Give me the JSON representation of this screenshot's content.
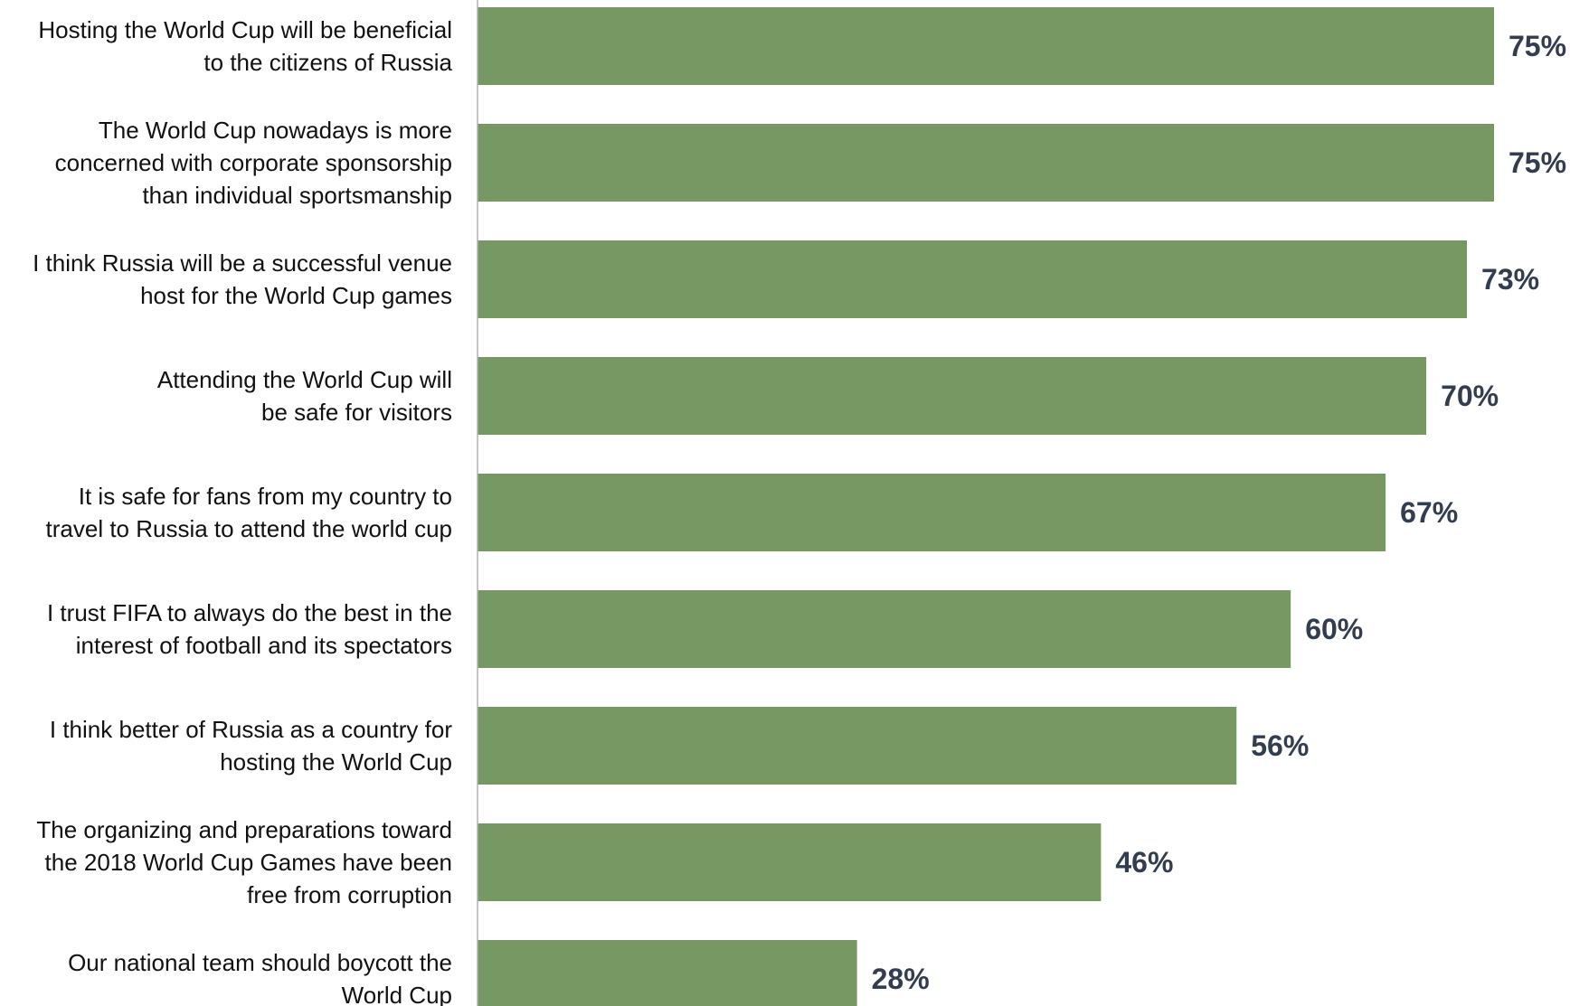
{
  "chart_data": {
    "type": "bar",
    "orientation": "horizontal",
    "categories": [
      "Hosting the World Cup will be beneficial to the citizens of Russia",
      "The World Cup nowadays is more concerned with corporate sponsorship than individual sportsmanship",
      "I think Russia will be a successful venue host for the World Cup games",
      "Attending the World Cup will be safe for visitors",
      "It is safe for fans from my country to travel to Russia to attend the world cup",
      "I trust FIFA to always do the best in the interest of football and its spectators",
      "I think better of Russia as a country for hosting the World Cup",
      "The organizing and preparations toward the 2018 World Cup Games have been free from corruption",
      "Our national team should boycott the World Cup"
    ],
    "category_lines": [
      [
        "Hosting the World Cup will be beneficial",
        "to the citizens of Russia"
      ],
      [
        "The World Cup nowadays is more",
        "concerned with corporate sponsorship",
        "than individual sportsmanship"
      ],
      [
        "I think Russia will be a successful venue",
        "host for the World Cup games"
      ],
      [
        "Attending the World Cup will",
        "be safe for visitors"
      ],
      [
        "It is safe for fans from my country to",
        "travel to Russia to attend the world cup"
      ],
      [
        "I trust FIFA to always do the best in the",
        "interest of football and its spectators"
      ],
      [
        "I think better of Russia as a country for",
        "hosting the World Cup"
      ],
      [
        "The organizing and preparations toward",
        "the 2018 World Cup Games have been",
        "free from corruption"
      ],
      [
        "Our national team should boycott the",
        "World Cup"
      ]
    ],
    "values": [
      75,
      75,
      73,
      70,
      67,
      60,
      56,
      46,
      28
    ],
    "value_labels": [
      "75%",
      "75%",
      "73%",
      "70%",
      "67%",
      "60%",
      "56%",
      "46%",
      "28%"
    ],
    "unit": "%",
    "xlim": [
      0,
      100
    ],
    "grid": false,
    "legend": "none",
    "colors": {
      "bar": "#779863",
      "value_label": "#333d4f",
      "category_label": "#111111",
      "axis": "#b0b0b0"
    }
  }
}
